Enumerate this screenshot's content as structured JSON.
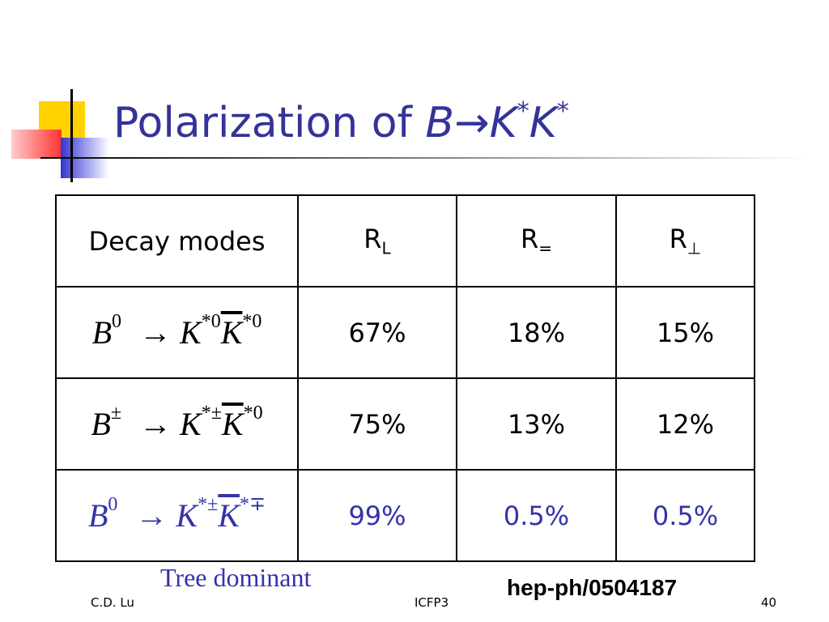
{
  "title": {
    "plain": "Polarization of",
    "b": "B",
    "arrow": "→",
    "k1": "K",
    "s1": "*",
    "k2": "K",
    "s2": "*"
  },
  "table": {
    "header": {
      "modes": "Decay modes",
      "cols": [
        {
          "base": "R",
          "sub": "L"
        },
        {
          "base": "R",
          "sub": "="
        },
        {
          "base": "R",
          "sub": "⊥"
        }
      ]
    },
    "rows": [
      {
        "mode": {
          "b": "B",
          "bsup": "0",
          "arrow": "→",
          "k1": "K",
          "k1sup": "*0",
          "k2": "K",
          "k2sup": "*0"
        },
        "values": [
          "67%",
          "18%",
          "15%"
        ]
      },
      {
        "mode": {
          "b": "B",
          "bsup": "±",
          "arrow": "→",
          "k1": "K",
          "k1sup": "*±",
          "k2": "K",
          "k2sup": "*0"
        },
        "values": [
          "75%",
          "13%",
          "12%"
        ]
      },
      {
        "mode": {
          "b": "B",
          "bsup": "0",
          "arrow": "→",
          "k1": "K",
          "k1sup": "*±",
          "k2": "K",
          "k2sup": "*∓"
        },
        "values": [
          "99%",
          "0.5%",
          "0.5%"
        ]
      }
    ]
  },
  "note": "Tree dominant",
  "reference": "hep-ph/0504187",
  "footer": {
    "author": "C.D. Lu",
    "event": "ICFP3",
    "page": "40"
  }
}
